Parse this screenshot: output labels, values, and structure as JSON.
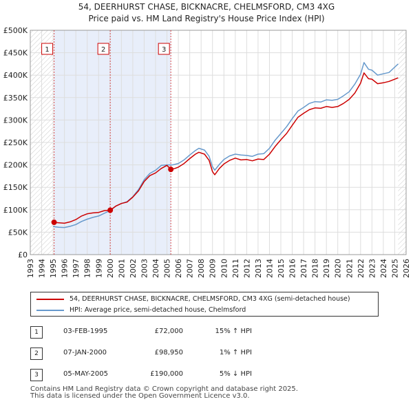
{
  "title": "54, DEERHURST CHASE, BICKNACRE, CHELMSFORD, CM3 4XG",
  "subtitle": "Price paid vs. HM Land Registry's House Price Index (HPI)",
  "chart_data": {
    "type": "line",
    "xlim": [
      1993,
      2026
    ],
    "ylim": [
      0,
      500000
    ],
    "yticks": [
      {
        "value": 0,
        "label": "£0"
      },
      {
        "value": 50000,
        "label": "£50K"
      },
      {
        "value": 100000,
        "label": "£100K"
      },
      {
        "value": 150000,
        "label": "£150K"
      },
      {
        "value": 200000,
        "label": "£200K"
      },
      {
        "value": 250000,
        "label": "£250K"
      },
      {
        "value": 300000,
        "label": "£300K"
      },
      {
        "value": 350000,
        "label": "£350K"
      },
      {
        "value": 400000,
        "label": "£400K"
      },
      {
        "value": 450000,
        "label": "£450K"
      },
      {
        "value": 500000,
        "label": "£500K"
      }
    ],
    "xticks": [
      "1993",
      "1994",
      "1995",
      "1996",
      "1997",
      "1998",
      "1999",
      "2000",
      "2001",
      "2002",
      "2003",
      "2004",
      "2005",
      "2006",
      "2007",
      "2008",
      "2009",
      "2010",
      "2011",
      "2012",
      "2013",
      "2014",
      "2015",
      "2016",
      "2017",
      "2018",
      "2019",
      "2020",
      "2021",
      "2022",
      "2023",
      "2024",
      "2025",
      "2026"
    ],
    "grid": true,
    "series": [
      {
        "name": "54, DEERHURST CHASE, BICKNACRE, CHELMSFORD, CM3 4XG (semi-detached house)",
        "color": "#cc0000",
        "x": [
          1995.09,
          1995.5,
          1996,
          1996.5,
          1997,
          1997.5,
          1998,
          1998.5,
          1999,
          1999.5,
          2000.02,
          2000.5,
          2001,
          2001.5,
          2002,
          2002.5,
          2003,
          2003.5,
          2004,
          2004.5,
          2005.0,
          2005.34,
          2005.7,
          2006,
          2006.5,
          2007,
          2007.5,
          2007.8,
          2008.3,
          2008.7,
          2009.0,
          2009.2,
          2009.6,
          2010,
          2010.5,
          2011,
          2011.5,
          2012,
          2012.5,
          2013,
          2013.5,
          2014,
          2014.5,
          2015,
          2015.5,
          2016,
          2016.5,
          2017,
          2017.5,
          2018,
          2018.5,
          2019,
          2019.5,
          2020,
          2020.5,
          2021,
          2021.5,
          2022,
          2022.3,
          2022.7,
          2023,
          2023.5,
          2024,
          2024.5,
          2025.0,
          2025.3
        ],
        "values": [
          72000,
          71000,
          70000,
          73000,
          78000,
          86000,
          91000,
          93000,
          94000,
          98000,
          98950,
          108000,
          114000,
          117000,
          128000,
          142000,
          163000,
          176000,
          182000,
          192000,
          199000,
          190000,
          192000,
          195000,
          203000,
          214000,
          224000,
          228000,
          224000,
          210000,
          185000,
          178000,
          192000,
          202000,
          210000,
          215000,
          211000,
          212000,
          209000,
          213000,
          212000,
          224000,
          241000,
          256000,
          270000,
          288000,
          306000,
          315000,
          323000,
          327000,
          326000,
          330000,
          328000,
          330000,
          337000,
          346000,
          360000,
          382000,
          405000,
          392000,
          391000,
          381000,
          383000,
          386000,
          391000,
          394000
        ]
      },
      {
        "name": "HPI: Average price, semi-detached house, Chelmsford",
        "color": "#6699cc",
        "x": [
          1995.0,
          1995.5,
          1996,
          1996.5,
          1997,
          1997.5,
          1998,
          1998.5,
          1999,
          1999.5,
          2000.0,
          2000.5,
          2001,
          2001.5,
          2002,
          2002.5,
          2003,
          2003.5,
          2004,
          2004.5,
          2005.0,
          2005.5,
          2006,
          2006.5,
          2007,
          2007.5,
          2007.8,
          2008.3,
          2008.7,
          2009.0,
          2009.2,
          2009.6,
          2010,
          2010.5,
          2011,
          2011.5,
          2012,
          2012.5,
          2013,
          2013.5,
          2014,
          2014.5,
          2015,
          2015.5,
          2016,
          2016.5,
          2017,
          2017.5,
          2018,
          2018.5,
          2019,
          2019.5,
          2020,
          2020.5,
          2021,
          2021.5,
          2022,
          2022.3,
          2022.7,
          2023,
          2023.5,
          2024,
          2024.5,
          2025.0,
          2025.3
        ],
        "values": [
          62500,
          61000,
          60500,
          63000,
          67000,
          74000,
          79000,
          83000,
          86000,
          92000,
          98000,
          108000,
          114000,
          118000,
          129000,
          145000,
          167000,
          181000,
          188000,
          199000,
          200000,
          200000,
          203000,
          211000,
          222000,
          232000,
          237000,
          233000,
          219000,
          196000,
          188000,
          201000,
          212000,
          220000,
          224000,
          222000,
          221000,
          219000,
          224000,
          225000,
          237000,
          255000,
          270000,
          285000,
          303000,
          320000,
          328000,
          337000,
          341000,
          340000,
          345000,
          344000,
          346000,
          354000,
          363000,
          380000,
          402000,
          428000,
          413000,
          411000,
          400000,
          403000,
          406000,
          418000,
          425000
        ]
      }
    ],
    "sales": [
      {
        "label": "1",
        "x": 1995.09,
        "value": 72000
      },
      {
        "label": "2",
        "x": 2000.02,
        "value": 98950
      },
      {
        "label": "3",
        "x": 2005.34,
        "value": 190000
      }
    ]
  },
  "legend": {
    "property": "54, DEERHURST CHASE, BICKNACRE, CHELMSFORD, CM3 4XG (semi-detached house)",
    "hpi": "HPI: Average price, semi-detached house, Chelmsford"
  },
  "transactions": [
    {
      "num": "1",
      "date": "03-FEB-1995",
      "price": "£72,000",
      "hpi": "15% ↑ HPI"
    },
    {
      "num": "2",
      "date": "07-JAN-2000",
      "price": "£98,950",
      "hpi": "1% ↑ HPI"
    },
    {
      "num": "3",
      "date": "05-MAY-2005",
      "price": "£190,000",
      "hpi": "5% ↓ HPI"
    }
  ],
  "footer": {
    "line1": "Contains HM Land Registry data © Crown copyright and database right 2025.",
    "line2": "This data is licensed under the Open Government Licence v3.0."
  }
}
